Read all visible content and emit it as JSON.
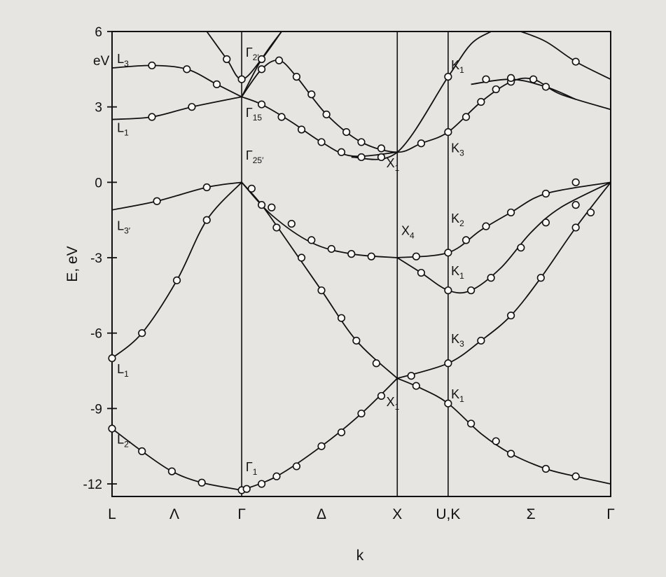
{
  "chart_data": {
    "type": "line",
    "title": "",
    "xlabel": "k",
    "ylabel": "E, eV",
    "y_unit_label": "eV",
    "ylim": [
      -12.5,
      6
    ],
    "yticks": [
      6,
      3,
      0,
      -3,
      -6,
      -9,
      -12
    ],
    "ytick_labels": [
      "6",
      "3",
      "0",
      "-3",
      "-6",
      "-9",
      "-12"
    ],
    "xlim": [
      0,
      1
    ],
    "x_points": [
      {
        "label": "L",
        "x": 0.0
      },
      {
        "label": "Λ",
        "x": 0.125,
        "divider": false
      },
      {
        "label": "Γ",
        "x": 0.26
      },
      {
        "label": "Δ",
        "x": 0.42,
        "divider": false
      },
      {
        "label": "X",
        "x": 0.572
      },
      {
        "label": "U,K",
        "x": 0.674
      },
      {
        "label": "Σ",
        "x": 0.84,
        "divider": false
      },
      {
        "label": "Γ",
        "x": 1.0
      }
    ],
    "grid": false,
    "series": [
      {
        "points": [
          [
            0,
            -9.8
          ],
          [
            0.06,
            -10.7
          ],
          [
            0.12,
            -11.5
          ],
          [
            0.18,
            -11.95
          ],
          [
            0.26,
            -12.25
          ]
        ],
        "markers": [
          [
            0,
            -9.8
          ],
          [
            0.06,
            -10.7
          ],
          [
            0.12,
            -11.5
          ],
          [
            0.18,
            -11.95
          ],
          [
            0.26,
            -12.25
          ]
        ]
      },
      {
        "points": [
          [
            0,
            -7.0
          ],
          [
            0.06,
            -6.0
          ],
          [
            0.13,
            -3.9
          ],
          [
            0.19,
            -1.5
          ],
          [
            0.26,
            0.0
          ]
        ],
        "markers": [
          [
            0,
            -7.0
          ],
          [
            0.06,
            -6.0
          ],
          [
            0.13,
            -3.9
          ],
          [
            0.19,
            -1.5
          ]
        ]
      },
      {
        "points": [
          [
            0,
            -1.1
          ],
          [
            0.09,
            -0.75
          ],
          [
            0.19,
            -0.2
          ],
          [
            0.26,
            0.0
          ]
        ],
        "markers": [
          [
            0.09,
            -0.75
          ],
          [
            0.19,
            -0.2
          ]
        ]
      },
      {
        "points": [
          [
            0,
            2.5
          ],
          [
            0.08,
            2.6
          ],
          [
            0.16,
            3.0
          ],
          [
            0.26,
            3.4
          ]
        ],
        "markers": [
          [
            0.08,
            2.6
          ],
          [
            0.16,
            3.0
          ]
        ]
      },
      {
        "points": [
          [
            0,
            4.55
          ],
          [
            0.08,
            4.65
          ],
          [
            0.15,
            4.5
          ],
          [
            0.21,
            3.9
          ],
          [
            0.26,
            3.4
          ]
        ],
        "markers": [
          [
            0.08,
            4.65
          ],
          [
            0.15,
            4.5
          ],
          [
            0.21,
            3.9
          ]
        ]
      },
      {
        "points": [
          [
            0.19,
            6.0
          ],
          [
            0.23,
            4.9
          ],
          [
            0.26,
            4.1
          ],
          [
            0.3,
            4.9
          ],
          [
            0.34,
            6.0
          ]
        ],
        "markers": [
          [
            0.23,
            4.9
          ],
          [
            0.26,
            4.1
          ]
        ]
      },
      {
        "points": [
          [
            0.26,
            -12.25
          ],
          [
            0.33,
            -11.7
          ],
          [
            0.42,
            -10.5
          ],
          [
            0.5,
            -9.2
          ],
          [
            0.572,
            -7.8
          ]
        ],
        "markers": [
          [
            0.27,
            -12.2
          ],
          [
            0.3,
            -12.0
          ],
          [
            0.33,
            -11.7
          ],
          [
            0.37,
            -11.3
          ],
          [
            0.42,
            -10.5
          ],
          [
            0.46,
            -9.95
          ],
          [
            0.5,
            -9.2
          ],
          [
            0.54,
            -8.5
          ]
        ]
      },
      {
        "points": [
          [
            0.26,
            0.0
          ],
          [
            0.3,
            -0.9
          ],
          [
            0.35,
            -2.3
          ],
          [
            0.42,
            -4.3
          ],
          [
            0.49,
            -6.3
          ],
          [
            0.572,
            -7.8
          ]
        ],
        "markers": [
          [
            0.3,
            -0.9
          ],
          [
            0.33,
            -1.8
          ],
          [
            0.38,
            -3.0
          ],
          [
            0.42,
            -4.3
          ],
          [
            0.46,
            -5.4
          ],
          [
            0.49,
            -6.3
          ],
          [
            0.53,
            -7.2
          ]
        ]
      },
      {
        "points": [
          [
            0.26,
            0.0
          ],
          [
            0.32,
            -1.3
          ],
          [
            0.4,
            -2.4
          ],
          [
            0.48,
            -2.85
          ],
          [
            0.572,
            -3.0
          ]
        ],
        "markers": [
          [
            0.28,
            -0.25
          ],
          [
            0.32,
            -1.0
          ],
          [
            0.36,
            -1.65
          ],
          [
            0.4,
            -2.3
          ],
          [
            0.44,
            -2.65
          ],
          [
            0.48,
            -2.85
          ],
          [
            0.52,
            -2.95
          ]
        ]
      },
      {
        "points": [
          [
            0.26,
            3.4
          ],
          [
            0.3,
            3.1
          ],
          [
            0.36,
            2.4
          ],
          [
            0.42,
            1.6
          ],
          [
            0.48,
            1.05
          ],
          [
            0.572,
            1.2
          ]
        ],
        "markers": [
          [
            0.3,
            3.1
          ],
          [
            0.34,
            2.6
          ],
          [
            0.38,
            2.1
          ],
          [
            0.42,
            1.6
          ],
          [
            0.46,
            1.2
          ],
          [
            0.5,
            1.0
          ],
          [
            0.54,
            1.0
          ]
        ]
      },
      {
        "points": [
          [
            0.26,
            3.4
          ],
          [
            0.3,
            4.5
          ],
          [
            0.335,
            4.85
          ],
          [
            0.37,
            4.2
          ],
          [
            0.43,
            2.7
          ],
          [
            0.5,
            1.6
          ],
          [
            0.572,
            1.2
          ],
          [
            0.62,
            1.55
          ],
          [
            0.674,
            2.0
          ],
          [
            0.74,
            3.2
          ],
          [
            0.8,
            4.0
          ],
          [
            0.845,
            4.1
          ],
          [
            0.9,
            3.5
          ],
          [
            1.0,
            2.9
          ]
        ],
        "markers": [
          [
            0.3,
            4.5
          ],
          [
            0.335,
            4.85
          ],
          [
            0.37,
            4.2
          ],
          [
            0.4,
            3.5
          ],
          [
            0.43,
            2.7
          ],
          [
            0.47,
            2.0
          ],
          [
            0.5,
            1.6
          ],
          [
            0.54,
            1.35
          ],
          [
            0.62,
            1.55
          ],
          [
            0.674,
            2.0
          ],
          [
            0.71,
            2.6
          ],
          [
            0.74,
            3.2
          ],
          [
            0.77,
            3.7
          ],
          [
            0.8,
            4.0
          ],
          [
            0.845,
            4.1
          ]
        ]
      },
      {
        "points": [
          [
            0.34,
            6.0
          ],
          [
            0.3,
            4.9
          ],
          [
            0.26,
            3.4
          ]
        ],
        "markers": [
          [
            0.3,
            4.9
          ]
        ]
      },
      {
        "points": [
          [
            0.48,
            1.0
          ],
          [
            0.572,
            1.2
          ],
          [
            0.674,
            4.2
          ],
          [
            0.72,
            5.5
          ],
          [
            0.76,
            6.0
          ]
        ],
        "markers": [
          [
            0.674,
            4.2
          ]
        ]
      },
      {
        "points": [
          [
            0.82,
            6.0
          ],
          [
            0.87,
            5.6
          ],
          [
            0.93,
            4.8
          ],
          [
            1.0,
            4.1
          ]
        ],
        "markers": [
          [
            0.93,
            4.8
          ]
        ]
      },
      {
        "points": [
          [
            0.72,
            3.9
          ],
          [
            0.8,
            4.1
          ],
          [
            0.87,
            3.8
          ],
          [
            0.93,
            3.3
          ]
        ],
        "markers": [
          [
            0.75,
            4.1
          ],
          [
            0.8,
            4.15
          ],
          [
            0.87,
            3.8
          ]
        ]
      },
      {
        "points": [
          [
            0.572,
            -3.0
          ],
          [
            0.674,
            -2.8
          ],
          [
            0.74,
            -1.9
          ],
          [
            0.8,
            -1.2
          ],
          [
            0.87,
            -0.45
          ],
          [
            1.0,
            0.0
          ]
        ],
        "markers": [
          [
            0.61,
            -2.95
          ],
          [
            0.674,
            -2.8
          ],
          [
            0.71,
            -2.3
          ],
          [
            0.75,
            -1.75
          ],
          [
            0.8,
            -1.2
          ],
          [
            0.87,
            -0.45
          ],
          [
            0.93,
            0.0
          ]
        ]
      },
      {
        "points": [
          [
            0.572,
            -3.0
          ],
          [
            0.62,
            -3.6
          ],
          [
            0.674,
            -4.3
          ],
          [
            0.72,
            -4.3
          ],
          [
            0.78,
            -3.4
          ],
          [
            0.84,
            -2.0
          ],
          [
            0.9,
            -1.0
          ],
          [
            1.0,
            0.0
          ]
        ],
        "markers": [
          [
            0.62,
            -3.6
          ],
          [
            0.674,
            -4.3
          ],
          [
            0.72,
            -4.3
          ],
          [
            0.76,
            -3.8
          ],
          [
            0.82,
            -2.6
          ],
          [
            0.87,
            -1.6
          ],
          [
            0.93,
            -0.9
          ]
        ]
      },
      {
        "points": [
          [
            0.572,
            -7.8
          ],
          [
            0.674,
            -7.2
          ],
          [
            0.74,
            -6.3
          ],
          [
            0.8,
            -5.3
          ],
          [
            0.86,
            -3.8
          ],
          [
            0.93,
            -1.8
          ],
          [
            1.0,
            0.0
          ]
        ],
        "markers": [
          [
            0.6,
            -7.7
          ],
          [
            0.674,
            -7.2
          ],
          [
            0.74,
            -6.3
          ],
          [
            0.8,
            -5.3
          ],
          [
            0.86,
            -3.8
          ],
          [
            0.93,
            -1.8
          ],
          [
            0.96,
            -1.2
          ]
        ]
      },
      {
        "points": [
          [
            0.572,
            -7.8
          ],
          [
            0.62,
            -8.2
          ],
          [
            0.674,
            -8.8
          ],
          [
            0.74,
            -10.0
          ],
          [
            0.8,
            -10.8
          ],
          [
            0.87,
            -11.4
          ],
          [
            0.93,
            -11.7
          ],
          [
            1.0,
            -12.0
          ]
        ],
        "markers": [
          [
            0.61,
            -8.1
          ],
          [
            0.674,
            -8.8
          ],
          [
            0.72,
            -9.6
          ],
          [
            0.77,
            -10.3
          ],
          [
            0.8,
            -10.8
          ],
          [
            0.87,
            -11.4
          ],
          [
            0.93,
            -11.7
          ]
        ]
      }
    ],
    "band_labels": [
      {
        "id": "L3",
        "base": "L",
        "sub": "3",
        "x": 0.01,
        "y": 4.75
      },
      {
        "id": "L1u",
        "base": "L",
        "sub": "1",
        "x": 0.01,
        "y": 2.0
      },
      {
        "id": "L3p",
        "base": "L",
        "sub": "3′",
        "x": 0.01,
        "y": -1.9
      },
      {
        "id": "L1d",
        "base": "L",
        "sub": "1",
        "x": 0.01,
        "y": -7.6
      },
      {
        "id": "L2p",
        "base": "L",
        "sub": "2′",
        "x": 0.01,
        "y": -10.4
      },
      {
        "id": "G2p",
        "base": "Γ",
        "sub": "2′",
        "x": 0.268,
        "y": 5.0
      },
      {
        "id": "G15",
        "base": "Γ",
        "sub": "15",
        "x": 0.268,
        "y": 2.6
      },
      {
        "id": "G25p",
        "base": "Γ",
        "sub": "25′",
        "x": 0.268,
        "y": 0.9
      },
      {
        "id": "G1",
        "base": "Γ",
        "sub": "1",
        "x": 0.268,
        "y": -11.5
      },
      {
        "id": "X1u",
        "base": "X",
        "sub": "1",
        "x": 0.55,
        "y": 0.6
      },
      {
        "id": "X4",
        "base": "X",
        "sub": "4",
        "x": 0.58,
        "y": -2.1
      },
      {
        "id": "X1d",
        "base": "X",
        "sub": "1",
        "x": 0.55,
        "y": -8.9
      },
      {
        "id": "K1a",
        "base": "K",
        "sub": "1",
        "x": 0.68,
        "y": 4.5
      },
      {
        "id": "K3a",
        "base": "K",
        "sub": "3",
        "x": 0.68,
        "y": 1.2
      },
      {
        "id": "K2",
        "base": "K",
        "sub": "2",
        "x": 0.68,
        "y": -1.6
      },
      {
        "id": "K1b",
        "base": "K",
        "sub": "1",
        "x": 0.68,
        "y": -3.7
      },
      {
        "id": "K3b",
        "base": "K",
        "sub": "3",
        "x": 0.68,
        "y": -6.4
      },
      {
        "id": "K1c",
        "base": "K",
        "sub": "1",
        "x": 0.68,
        "y": -8.6
      }
    ]
  }
}
